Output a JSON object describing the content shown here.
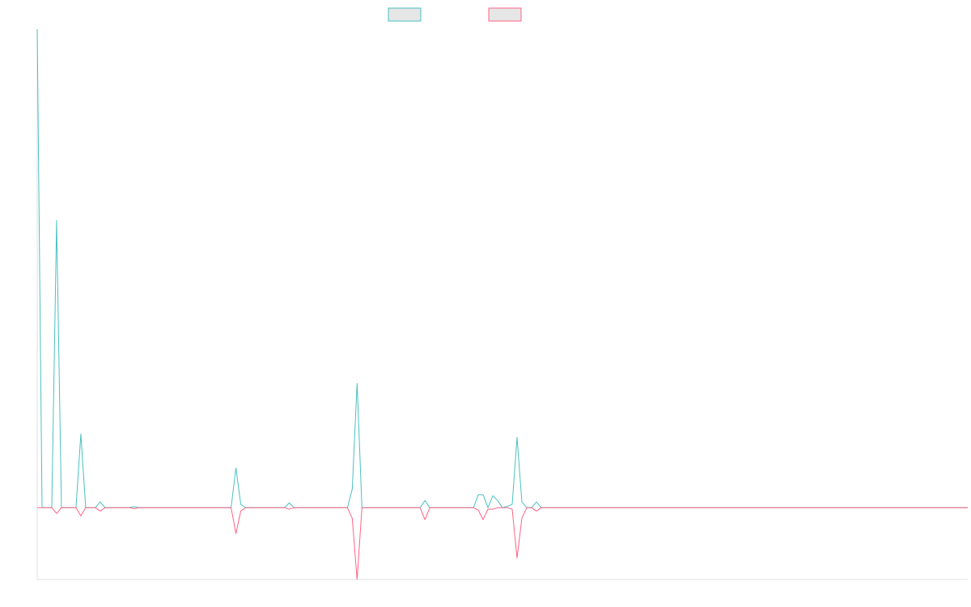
{
  "chart_data": {
    "type": "line",
    "ylim": [
      -15,
      100
    ],
    "legend": "top",
    "series": [
      {
        "color": "#4bc0c0",
        "values": [
          100,
          0,
          0,
          0,
          60,
          0,
          0,
          0,
          0,
          15.4,
          0,
          0,
          0,
          1.2,
          0,
          0,
          0,
          0,
          0,
          0,
          0.2,
          0,
          0,
          0,
          0,
          0,
          0,
          0,
          0,
          0,
          0,
          0,
          0,
          0,
          0,
          0,
          0,
          0,
          0,
          0,
          0,
          8.3,
          0.7,
          0,
          0,
          0,
          0,
          0,
          0,
          0,
          0,
          0,
          1,
          0,
          0,
          0,
          0,
          0,
          0,
          0,
          0,
          0,
          0,
          0,
          0,
          3.9,
          26,
          0,
          0,
          0,
          0,
          0,
          0,
          0,
          0,
          0,
          0,
          0,
          0,
          0,
          1.5,
          0,
          0,
          0,
          0,
          0,
          0,
          0,
          0,
          0,
          0,
          2.7,
          2.7,
          0,
          2.5,
          1.5,
          0,
          0.3,
          0.7,
          14.7,
          1.2,
          0,
          0,
          1.2,
          0,
          0,
          0,
          0,
          0,
          0,
          0,
          0,
          0,
          0,
          0,
          0,
          0,
          0,
          0,
          0,
          0,
          0,
          0,
          0,
          0,
          0,
          0,
          0,
          0,
          0,
          0,
          0,
          0,
          0,
          0,
          0,
          0,
          0,
          0,
          0,
          0,
          0,
          0,
          0,
          0,
          0,
          0,
          0,
          0,
          0,
          0,
          0,
          0,
          0,
          0,
          0,
          0,
          0,
          0,
          0,
          0,
          0,
          0,
          0,
          0,
          0,
          0,
          0,
          0,
          0,
          0,
          0,
          0,
          0,
          0,
          0,
          0,
          0,
          0,
          0,
          0,
          0,
          0,
          0,
          0,
          0,
          0,
          0,
          0,
          0,
          0,
          0,
          0
        ]
      },
      {
        "color": "#ff6384",
        "values": [
          0,
          0,
          0,
          0,
          -1.2,
          0,
          0,
          0,
          0,
          -1.7,
          0,
          0,
          0,
          -0.7,
          0,
          0,
          0,
          0,
          0,
          0,
          -0.2,
          0,
          0,
          0,
          0,
          0,
          0,
          0,
          0,
          0,
          0,
          0,
          0,
          0,
          0,
          0,
          0,
          0,
          0,
          0,
          0,
          -5.4,
          -0.7,
          0,
          0,
          0,
          0,
          0,
          0,
          0,
          0,
          0,
          -0.3,
          0,
          0,
          0,
          0,
          0,
          0,
          0,
          0,
          0,
          0,
          0,
          0,
          -2.2,
          -15,
          0,
          0,
          0,
          0,
          0,
          0,
          0,
          0,
          0,
          0,
          0,
          0,
          0,
          -2.5,
          0,
          0,
          0,
          0,
          0,
          0,
          0,
          0,
          0,
          0,
          -0.5,
          -2.5,
          -0.3,
          -0.3,
          0,
          0,
          0,
          -0.3,
          -10.5,
          -2.2,
          0,
          0,
          -0.7,
          0,
          0,
          0,
          0,
          0,
          0,
          0,
          0,
          0,
          0,
          0,
          0,
          0,
          0,
          0,
          0,
          0,
          0,
          0,
          0,
          0,
          0,
          0,
          0,
          0,
          0,
          0,
          0,
          0,
          0,
          0,
          0,
          0,
          0,
          0,
          0,
          0,
          0,
          0,
          0,
          0,
          0,
          0,
          0,
          0,
          0,
          0,
          0,
          0,
          0,
          0,
          0,
          0,
          0,
          0,
          0,
          0,
          0,
          0,
          0,
          0,
          0,
          0,
          0,
          0,
          0,
          0,
          0,
          0,
          0,
          0,
          0,
          0,
          0,
          0,
          0,
          0,
          0,
          0,
          0,
          0,
          0,
          0,
          0,
          0,
          0,
          0,
          0,
          0
        ]
      }
    ]
  }
}
